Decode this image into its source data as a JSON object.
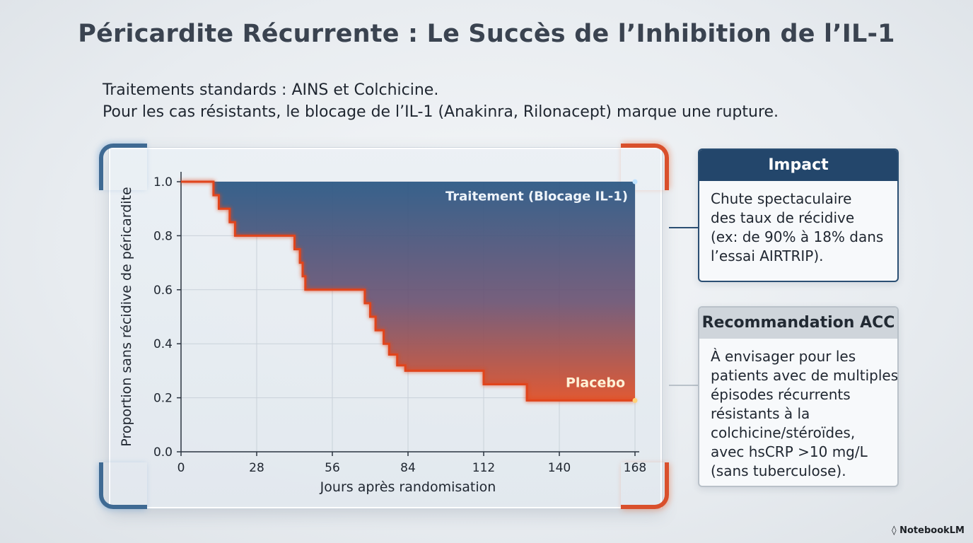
{
  "header": {
    "title": "Péricardite Récurrente : Le Succès de l’Inhibition de l’IL-1"
  },
  "intro": {
    "line1": "Traitements standards : AINS et Colchicine.",
    "line2": "Pour les cas résistants, le blocage de l’IL-1 (Anakinra, Rilonacept) marque une rupture."
  },
  "chart_data": {
    "type": "line",
    "xlabel": "Jours après randomisation",
    "ylabel": "Proportion sans récidive de péricardite",
    "xlim": [
      0,
      168
    ],
    "ylim": [
      0,
      1.0
    ],
    "x_ticks": [
      0,
      28,
      56,
      84,
      112,
      140,
      168
    ],
    "y_ticks": [
      0.0,
      0.2,
      0.4,
      0.6,
      0.8,
      1.0
    ],
    "y_tick_labels": [
      "0.0",
      "0.2",
      "0.4",
      "0.6",
      "0.8",
      "1.0"
    ],
    "grid": true,
    "series": [
      {
        "name": "Traitement (Blocage IL-1)",
        "color": "#1f3f63",
        "step": true,
        "x": [
          0,
          168
        ],
        "y": [
          1.0,
          1.0
        ]
      },
      {
        "name": "Placebo",
        "color": "#e0451f",
        "step": true,
        "x": [
          0,
          12,
          14,
          18,
          20,
          42,
          44,
          45,
          46,
          68,
          70,
          72,
          75,
          77,
          80,
          83,
          104,
          112,
          128,
          140,
          168
        ],
        "y": [
          1.0,
          0.95,
          0.9,
          0.85,
          0.8,
          0.75,
          0.7,
          0.65,
          0.6,
          0.55,
          0.5,
          0.45,
          0.4,
          0.36,
          0.32,
          0.3,
          0.3,
          0.25,
          0.19,
          0.19,
          0.19
        ]
      }
    ]
  },
  "panels": {
    "impact": {
      "title": "Impact",
      "lines": [
        "Chute spectaculaire",
        "des taux de récidive",
        "(ex: de 90% à 18% dans",
        "l’essai AIRTRIP)."
      ]
    },
    "reco": {
      "title": "Recommandation ACC",
      "lines": [
        "À envisager pour les",
        "patients avec de multiples",
        "épisodes récurrents",
        "résistants à la",
        "colchicine/stéroïdes,",
        "avec hsCRP >10 mg/L",
        "(sans tuberculose)."
      ]
    }
  },
  "footer": {
    "brand": "NotebookLM"
  }
}
